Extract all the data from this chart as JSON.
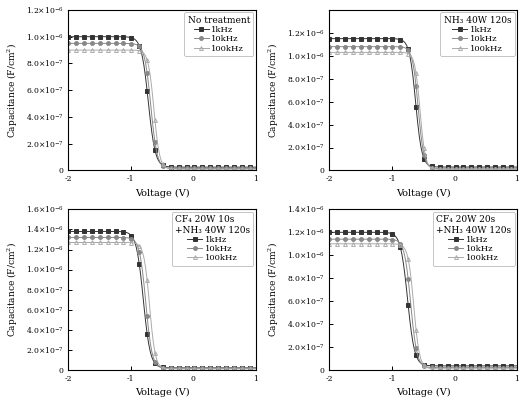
{
  "subplots": [
    {
      "title": "No treatment",
      "title_line2": null,
      "ylim": [
        0,
        1.2e-06
      ],
      "ytick_vals": [
        0,
        2e-07,
        4e-07,
        6e-07,
        8e-07,
        1e-06,
        1.2e-06
      ],
      "ytick_labels": [
        "0",
        "2.0×10⁻⁷",
        "4.0×10⁻⁷",
        "6.0×10⁻⁷",
        "8.0×10⁻⁷",
        "1.0×10⁻⁶",
        "1.2×10⁻⁶"
      ],
      "series": [
        {
          "label": "1kHz",
          "color": "#333333",
          "marker": "s",
          "C_acc": 1e-06,
          "V_mid": -0.72,
          "k": 18,
          "C_min": 2.5e-08
        },
        {
          "label": "10kHz",
          "color": "#888888",
          "marker": "o",
          "C_acc": 9.5e-07,
          "V_mid": -0.68,
          "k": 20,
          "C_min": 1.5e-08
        },
        {
          "label": "100kHz",
          "color": "#aaaaaa",
          "marker": "^",
          "C_acc": 9e-07,
          "V_mid": -0.63,
          "k": 22,
          "C_min": 1e-08
        }
      ]
    },
    {
      "title": "NH₃ 40W 120s",
      "title_line2": null,
      "ylim": [
        0,
        1.4e-06
      ],
      "ytick_vals": [
        0,
        2e-07,
        4e-07,
        6e-07,
        8e-07,
        1e-06,
        1.2e-06
      ],
      "ytick_labels": [
        "0",
        "2.0×10⁻⁷",
        "4.0×10⁻⁷",
        "6.0×10⁻⁷",
        "8.0×10⁻⁷",
        "1.0×10⁻⁶",
        "1.2×10⁻⁶"
      ],
      "series": [
        {
          "label": "1kHz",
          "color": "#333333",
          "marker": "s",
          "C_acc": 1.15e-06,
          "V_mid": -0.62,
          "k": 20,
          "C_min": 3e-08
        },
        {
          "label": "10kHz",
          "color": "#888888",
          "marker": "o",
          "C_acc": 1.08e-06,
          "V_mid": -0.58,
          "k": 22,
          "C_min": 1.5e-08
        },
        {
          "label": "100kHz",
          "color": "#aaaaaa",
          "marker": "^",
          "C_acc": 1.03e-06,
          "V_mid": -0.55,
          "k": 24,
          "C_min": 1e-08
        }
      ]
    },
    {
      "title": "CF₄ 20W 10s",
      "title_line2": "+NH₃ 40W 120s",
      "ylim": [
        0,
        1.6e-06
      ],
      "ytick_vals": [
        0,
        2e-07,
        4e-07,
        6e-07,
        8e-07,
        1e-06,
        1.2e-06,
        1.4e-06,
        1.6e-06
      ],
      "ytick_labels": [
        "0",
        "2.0×10⁻⁷",
        "4.0×10⁻⁷",
        "6.0×10⁻⁷",
        "8.0×10⁻⁷",
        "1.0×10⁻⁶",
        "1.2×10⁻⁶",
        "1.4×10⁻⁶",
        "1.6×10⁻⁶"
      ],
      "series": [
        {
          "label": "1kHz",
          "color": "#333333",
          "marker": "s",
          "C_acc": 1.38e-06,
          "V_mid": -0.8,
          "k": 18,
          "C_min": 2e-08
        },
        {
          "label": "10kHz",
          "color": "#888888",
          "marker": "o",
          "C_acc": 1.32e-06,
          "V_mid": -0.76,
          "k": 20,
          "C_min": 1.5e-08
        },
        {
          "label": "100kHz",
          "color": "#aaaaaa",
          "marker": "^",
          "C_acc": 1.27e-06,
          "V_mid": -0.7,
          "k": 22,
          "C_min": 1e-08
        }
      ]
    },
    {
      "title": "CF₄ 20W 20s",
      "title_line2": "+NH₃ 40W 120s",
      "ylim": [
        0,
        1.4e-06
      ],
      "ytick_vals": [
        0,
        2e-07,
        4e-07,
        6e-07,
        8e-07,
        1e-06,
        1.2e-06,
        1.4e-06
      ],
      "ytick_labels": [
        "0",
        "2.0×10⁻⁷",
        "4.0×10⁻⁷",
        "6.0×10⁻⁷",
        "8.0×10⁻⁷",
        "1.0×10⁻⁶",
        "1.2×10⁻⁶",
        "1.4×10⁻⁶"
      ],
      "series": [
        {
          "label": "1kHz",
          "color": "#333333",
          "marker": "s",
          "C_acc": 1.2e-06,
          "V_mid": -0.75,
          "k": 18,
          "C_min": 3.5e-08
        },
        {
          "label": "10kHz",
          "color": "#888888",
          "marker": "o",
          "C_acc": 1.14e-06,
          "V_mid": -0.7,
          "k": 20,
          "C_min": 2e-08
        },
        {
          "label": "100kHz",
          "color": "#aaaaaa",
          "marker": "^",
          "C_acc": 1.1e-06,
          "V_mid": -0.65,
          "k": 22,
          "C_min": 1e-08
        }
      ]
    }
  ],
  "xlabel": "Voltage (V)",
  "ylabel": "Capacitance (F/cm²)",
  "xlim": [
    -2,
    1
  ],
  "xticks": [
    -2,
    -1,
    0,
    1
  ],
  "n_points": 120,
  "bg_color": "#ffffff"
}
